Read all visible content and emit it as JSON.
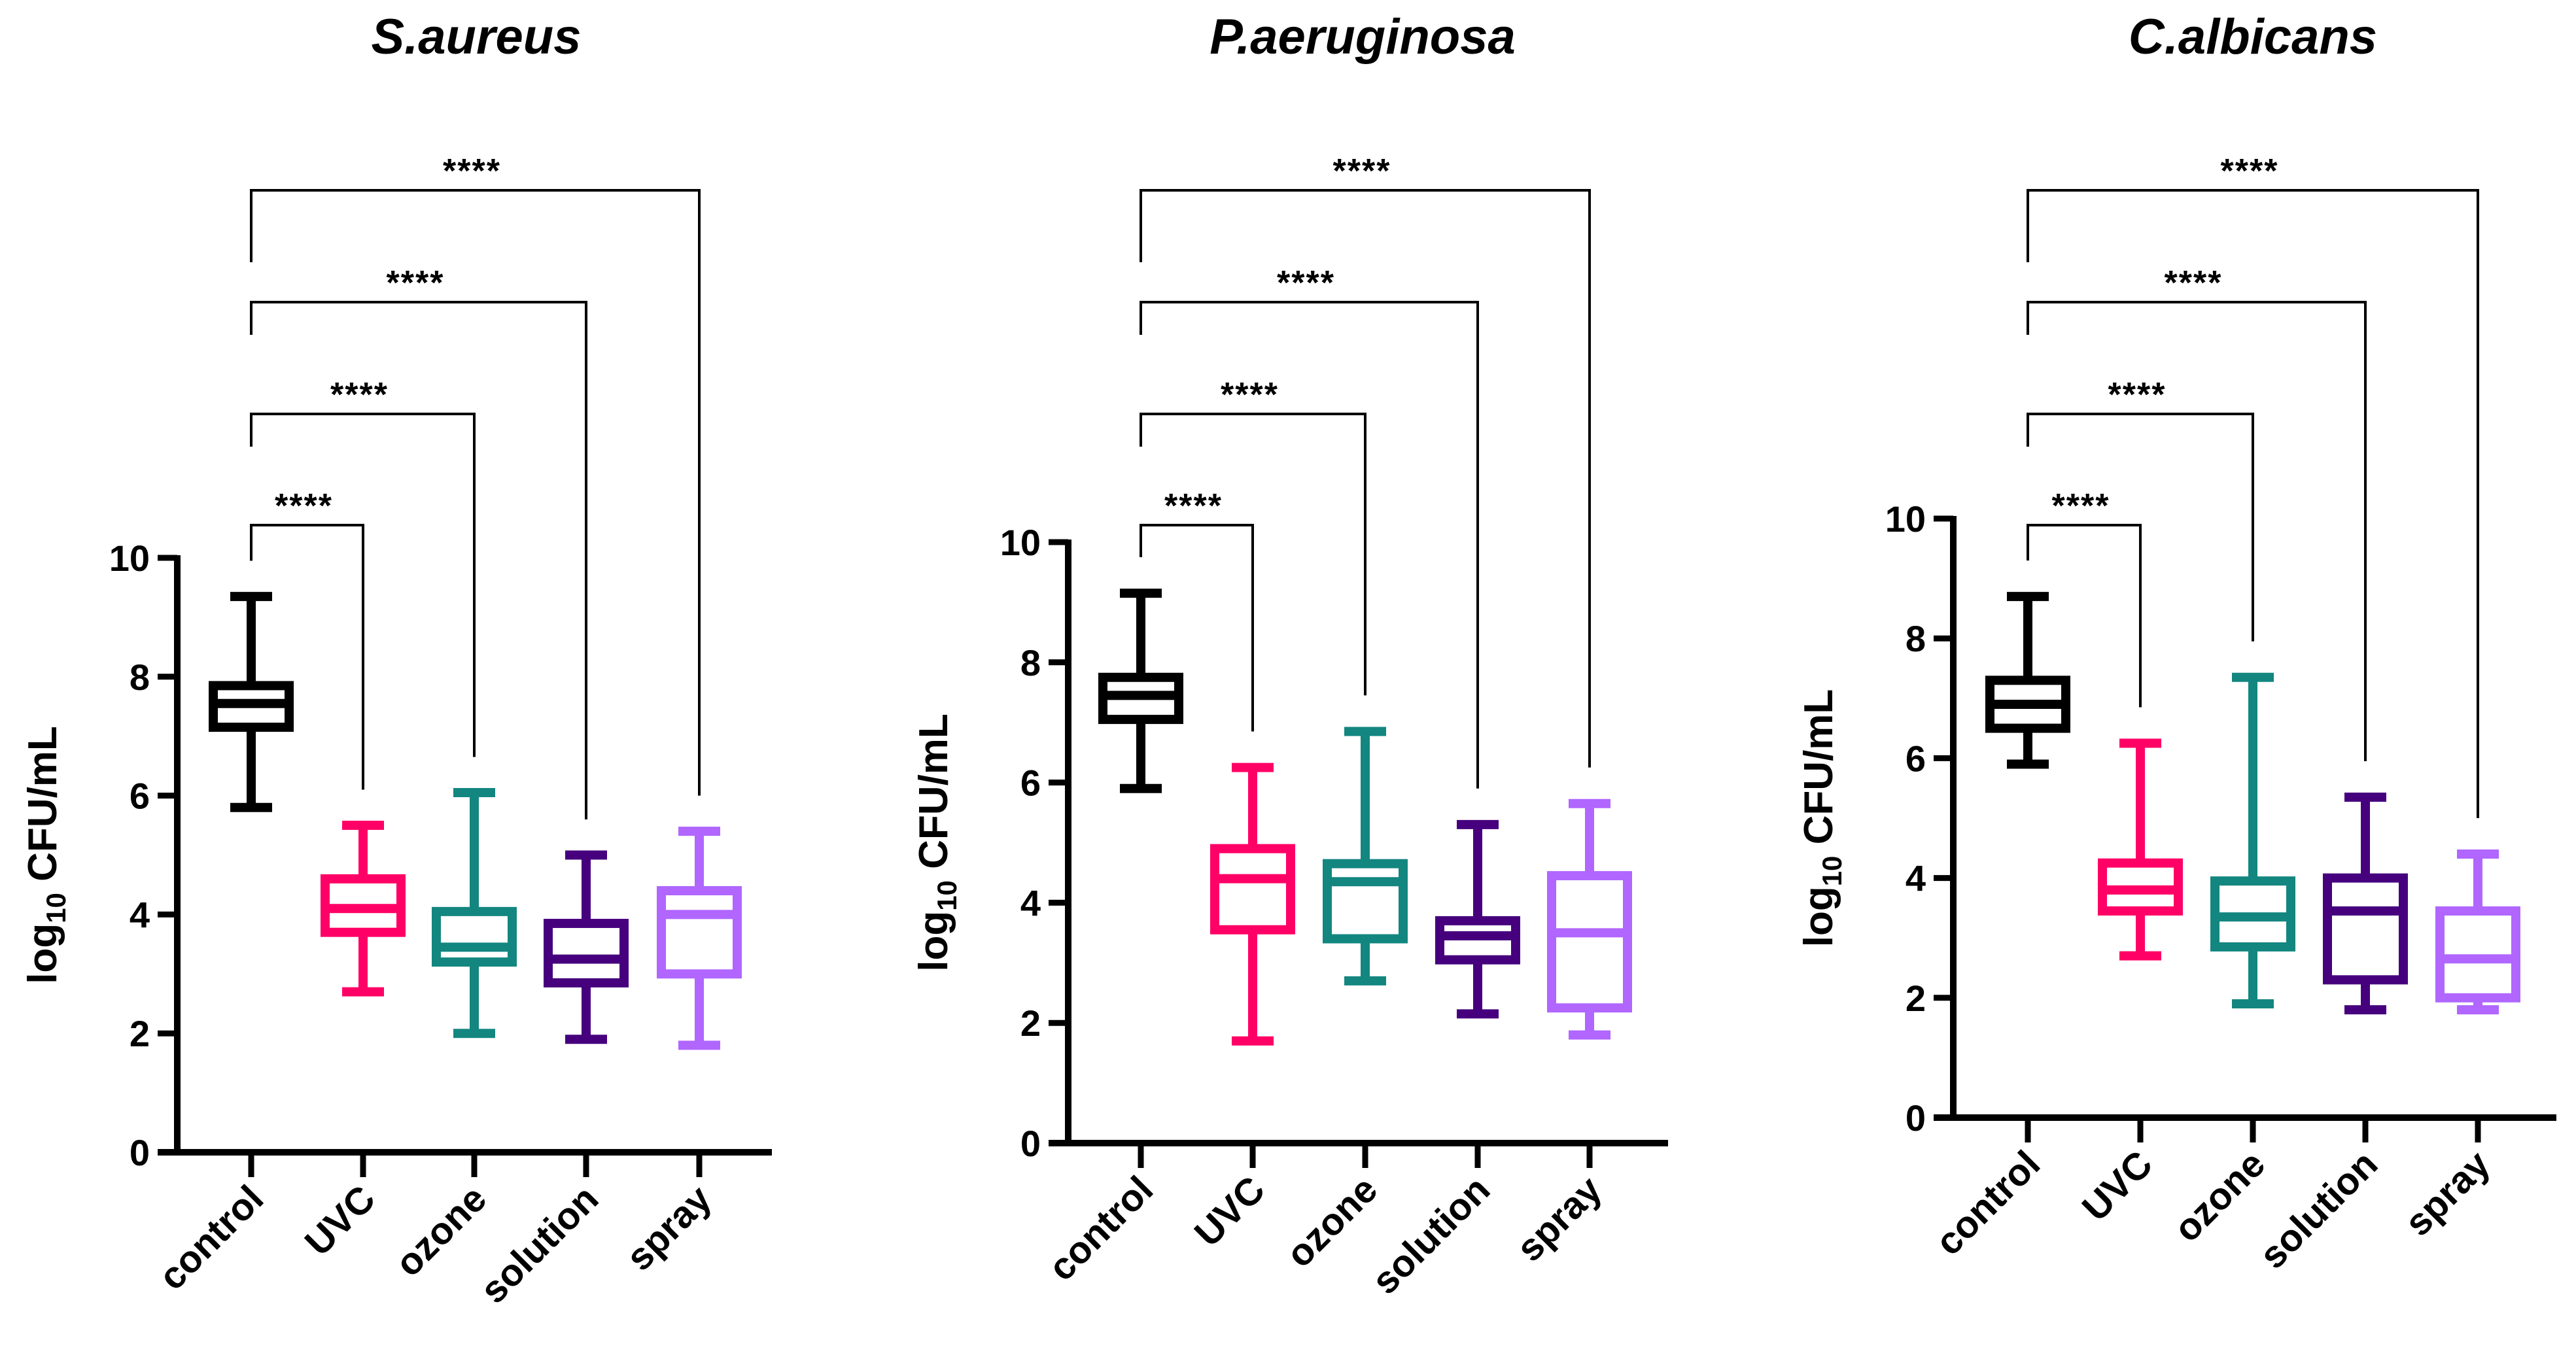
{
  "chart_data": [
    {
      "type": "box",
      "title": "S.aureus",
      "ylabel": "log10 CFU/mL",
      "ylabel_main": "log",
      "ylabel_sub": "10",
      "ylabel_rest": " CFU/mL",
      "xlabel": "",
      "ylim": [
        0,
        10
      ],
      "yticks": [
        "0",
        "2",
        "4",
        "6",
        "8",
        "10"
      ],
      "grid": false,
      "categories": [
        "control",
        "UVC",
        "ozone",
        "solution",
        "spray"
      ],
      "colors": [
        "#000000",
        "#FF0066",
        "#138680",
        "#46007E",
        "#B066FF"
      ],
      "boxes": [
        {
          "min": 5.8,
          "q1": 7.15,
          "median": 7.55,
          "q3": 7.85,
          "max": 9.35
        },
        {
          "min": 2.7,
          "q1": 3.7,
          "median": 4.1,
          "q3": 4.6,
          "max": 5.5
        },
        {
          "min": 2.0,
          "q1": 3.2,
          "median": 3.45,
          "q3": 4.05,
          "max": 6.05
        },
        {
          "min": 1.9,
          "q1": 2.85,
          "median": 3.25,
          "q3": 3.85,
          "max": 5.0
        },
        {
          "min": 1.8,
          "q1": 3.0,
          "median": 4.0,
          "q3": 4.4,
          "max": 5.4
        }
      ],
      "comparisons": [
        {
          "from": "control",
          "to": "UVC",
          "label": "****"
        },
        {
          "from": "control",
          "to": "ozone",
          "label": "****"
        },
        {
          "from": "control",
          "to": "solution",
          "label": "****"
        },
        {
          "from": "control",
          "to": "spray",
          "label": "****"
        }
      ]
    },
    {
      "type": "box",
      "title": "P.aeruginosa",
      "ylabel": "log10 CFU/mL",
      "ylabel_main": "log",
      "ylabel_sub": "10",
      "ylabel_rest": " CFU/mL",
      "xlabel": "",
      "ylim": [
        0,
        10
      ],
      "yticks": [
        "0",
        "2",
        "4",
        "6",
        "8",
        "10"
      ],
      "grid": false,
      "categories": [
        "control",
        "UVC",
        "ozone",
        "solution",
        "spray"
      ],
      "colors": [
        "#000000",
        "#FF0066",
        "#138680",
        "#46007E",
        "#B066FF"
      ],
      "boxes": [
        {
          "min": 5.9,
          "q1": 7.05,
          "median": 7.45,
          "q3": 7.75,
          "max": 9.15
        },
        {
          "min": 1.7,
          "q1": 3.55,
          "median": 4.4,
          "q3": 4.9,
          "max": 6.25
        },
        {
          "min": 2.7,
          "q1": 3.4,
          "median": 4.35,
          "q3": 4.65,
          "max": 6.85
        },
        {
          "min": 2.15,
          "q1": 3.05,
          "median": 3.45,
          "q3": 3.7,
          "max": 5.3
        },
        {
          "min": 1.8,
          "q1": 2.25,
          "median": 3.5,
          "q3": 4.45,
          "max": 5.65
        }
      ],
      "comparisons": [
        {
          "from": "control",
          "to": "UVC",
          "label": "****"
        },
        {
          "from": "control",
          "to": "ozone",
          "label": "****"
        },
        {
          "from": "control",
          "to": "solution",
          "label": "****"
        },
        {
          "from": "control",
          "to": "spray",
          "label": "****"
        }
      ]
    },
    {
      "type": "box",
      "title": "C.albicans",
      "ylabel": "log10 CFU/mL",
      "ylabel_main": "log",
      "ylabel_sub": "10",
      "ylabel_rest": " CFU/mL",
      "xlabel": "",
      "ylim": [
        0,
        10
      ],
      "yticks": [
        "0",
        "2",
        "4",
        "6",
        "8",
        "10"
      ],
      "grid": false,
      "categories": [
        "control",
        "UVC",
        "ozone",
        "solution",
        "spray"
      ],
      "colors": [
        "#000000",
        "#FF0066",
        "#138680",
        "#46007E",
        "#B066FF"
      ],
      "boxes": [
        {
          "min": 5.9,
          "q1": 6.5,
          "median": 6.9,
          "q3": 7.3,
          "max": 8.7
        },
        {
          "min": 2.7,
          "q1": 3.45,
          "median": 3.8,
          "q3": 4.25,
          "max": 6.25
        },
        {
          "min": 1.9,
          "q1": 2.85,
          "median": 3.35,
          "q3": 3.95,
          "max": 7.35
        },
        {
          "min": 1.8,
          "q1": 2.3,
          "median": 3.45,
          "q3": 4.0,
          "max": 5.35
        },
        {
          "min": 1.8,
          "q1": 2.0,
          "median": 2.65,
          "q3": 3.45,
          "max": 4.4
        }
      ],
      "comparisons": [
        {
          "from": "control",
          "to": "UVC",
          "label": "****"
        },
        {
          "from": "control",
          "to": "ozone",
          "label": "****"
        },
        {
          "from": "control",
          "to": "solution",
          "label": "****"
        },
        {
          "from": "control",
          "to": "spray",
          "label": "****"
        }
      ]
    }
  ]
}
